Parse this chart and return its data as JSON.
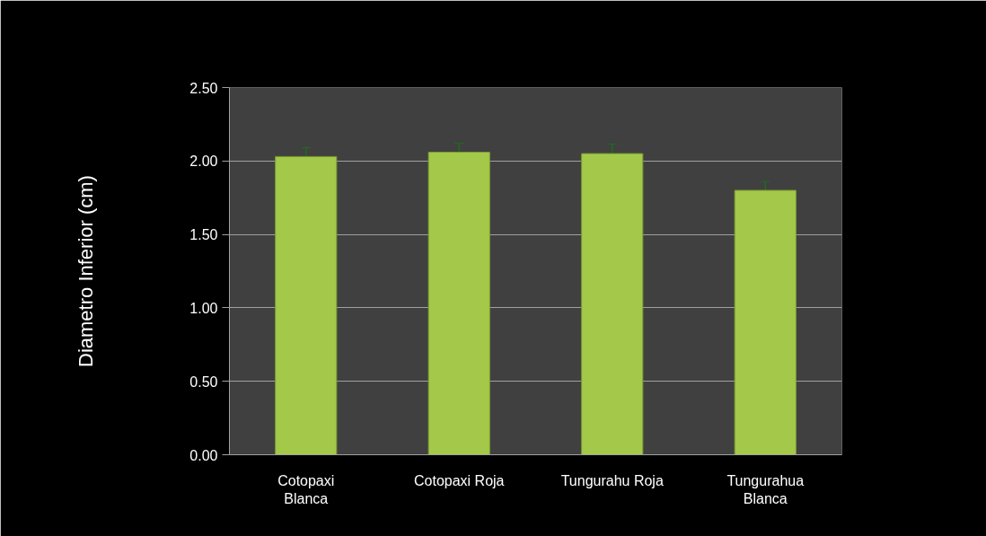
{
  "chart_data": {
    "type": "bar",
    "ylabel": "Diametro Inferior (cm)",
    "categories": [
      "Cotopaxi Blanca",
      "Cotopaxi Roja",
      "Tungurahu Roja",
      "Tungurahua Blanca"
    ],
    "values": [
      2.03,
      2.06,
      2.05,
      1.8
    ],
    "errors": [
      0.06,
      0.06,
      0.065,
      0.06
    ],
    "color": "#a4c94a",
    "ylim": [
      0,
      2.5
    ],
    "yticks": [
      {
        "value": 0,
        "label": "0.00"
      },
      {
        "value": 0.5,
        "label": "0.50"
      },
      {
        "value": 1,
        "label": "1.00"
      },
      {
        "value": 1.5,
        "label": "1.50"
      },
      {
        "value": 2,
        "label": "2.00"
      },
      {
        "value": 2.5,
        "label": "2.50"
      }
    ],
    "grid": "y"
  }
}
